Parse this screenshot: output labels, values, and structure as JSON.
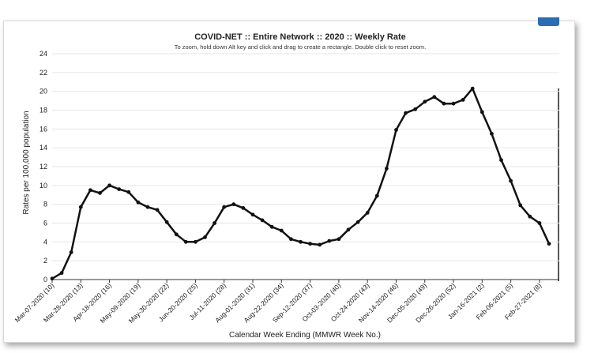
{
  "chart_data": {
    "type": "line",
    "title": "COVID-NET :: Entire Network :: 2020 :: Weekly Rate",
    "subtitle": "To zoom, hold down Alt key and click and drag to create a rectangle. Double click to reset zoom.",
    "xlabel": "Calendar Week Ending (MMWR Week No.)",
    "ylabel": "Rates per 100,000 population",
    "ylim": [
      0,
      24
    ],
    "yticks": [
      0,
      2,
      4,
      6,
      8,
      10,
      12,
      14,
      16,
      18,
      20,
      22,
      24
    ],
    "grid": true,
    "x_tick_labels": [
      "Mar-07-2020 (10)",
      "Mar-28-2020 (13)",
      "Apr-18-2020 (16)",
      "May-09-2020 (19)",
      "May-30-2020 (22)",
      "Jun-20-2020 (25)",
      "Jul-11-2020 (28)",
      "Aug-01-2020 (31)",
      "Aug-22-2020 (34)",
      "Sep-12-2020 (37)",
      "Oct-03-2020 (40)",
      "Oct-24-2020 (43)",
      "Nov-14-2020 (46)",
      "Dec-05-2020 (49)",
      "Dec-26-2020 (52)",
      "Jan-16-2021 (2)",
      "Feb-06-2021 (5)",
      "Feb-27-2021 (8)"
    ],
    "series": [
      {
        "color": "#111111",
        "x": [
          "Mar-07-2020 (10)",
          "Mar-14-2020 (11)",
          "Mar-21-2020 (12)",
          "Mar-28-2020 (13)",
          "Apr-04-2020 (14)",
          "Apr-11-2020 (15)",
          "Apr-18-2020 (16)",
          "Apr-25-2020 (17)",
          "May-02-2020 (18)",
          "May-09-2020 (19)",
          "May-16-2020 (20)",
          "May-23-2020 (21)",
          "May-30-2020 (22)",
          "Jun-06-2020 (23)",
          "Jun-13-2020 (24)",
          "Jun-20-2020 (25)",
          "Jun-27-2020 (26)",
          "Jul-04-2020 (27)",
          "Jul-11-2020 (28)",
          "Jul-18-2020 (29)",
          "Jul-25-2020 (30)",
          "Aug-01-2020 (31)",
          "Aug-08-2020 (32)",
          "Aug-15-2020 (33)",
          "Aug-22-2020 (34)",
          "Aug-29-2020 (35)",
          "Sep-05-2020 (36)",
          "Sep-12-2020 (37)",
          "Sep-19-2020 (38)",
          "Sep-26-2020 (39)",
          "Oct-03-2020 (40)",
          "Oct-10-2020 (41)",
          "Oct-17-2020 (42)",
          "Oct-24-2020 (43)",
          "Oct-31-2020 (44)",
          "Nov-07-2020 (45)",
          "Nov-14-2020 (46)",
          "Nov-21-2020 (47)",
          "Nov-28-2020 (48)",
          "Dec-05-2020 (49)",
          "Dec-12-2020 (50)",
          "Dec-19-2020 (51)",
          "Dec-26-2020 (52)",
          "Jan-02-2021 (53)",
          "Jan-09-2021 (1)",
          "Jan-16-2021 (2)",
          "Jan-23-2021 (3)",
          "Jan-30-2021 (4)",
          "Feb-06-2021 (5)",
          "Feb-13-2021 (6)",
          "Feb-20-2021 (7)",
          "Feb-27-2021 (8)",
          "Mar-06-2021 (9)"
        ],
        "values": [
          0.1,
          0.7,
          2.9,
          7.7,
          9.5,
          9.2,
          10.0,
          9.6,
          9.3,
          8.2,
          7.7,
          7.4,
          6.1,
          4.8,
          4.0,
          4.0,
          4.5,
          6.0,
          7.7,
          8.0,
          7.6,
          6.9,
          6.3,
          5.6,
          5.2,
          4.3,
          4.0,
          3.8,
          3.7,
          4.1,
          4.3,
          5.3,
          6.1,
          7.1,
          8.9,
          11.8,
          15.9,
          17.7,
          18.1,
          18.9,
          19.4,
          18.7,
          18.7,
          19.1,
          20.3,
          17.8,
          15.5,
          12.7,
          10.5,
          7.9,
          6.7,
          6.0,
          3.8
        ]
      }
    ]
  }
}
